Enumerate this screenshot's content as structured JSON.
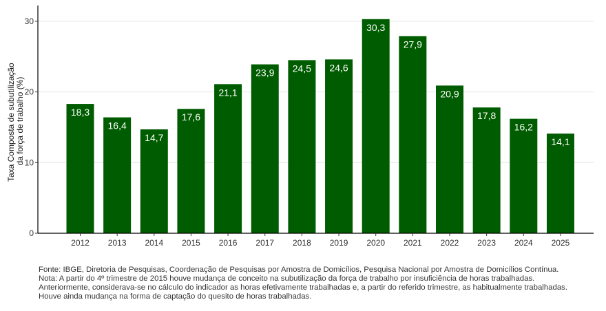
{
  "chart_data": {
    "type": "bar",
    "categories": [
      "2012",
      "2013",
      "2014",
      "2015",
      "2016",
      "2017",
      "2018",
      "2019",
      "2020",
      "2021",
      "2022",
      "2023",
      "2024",
      "2025"
    ],
    "values": [
      18.3,
      16.4,
      14.7,
      17.6,
      21.1,
      23.9,
      24.5,
      24.6,
      30.3,
      27.9,
      20.9,
      17.8,
      16.2,
      14.1
    ],
    "value_labels": [
      "18,3",
      "16,4",
      "14,7",
      "17,6",
      "21,1",
      "23,9",
      "24,5",
      "24,6",
      "30,3",
      "27,9",
      "20,9",
      "17,8",
      "16,2",
      "14,1"
    ],
    "title": "",
    "xlabel": "",
    "ylabel_lines": [
      "Taxa Composta de subutilização",
      "da força de trabalho (%)"
    ],
    "ylim": [
      0,
      32
    ],
    "yticks": [
      0,
      10,
      20,
      30
    ],
    "grid": true,
    "bar_color": "#005c00"
  },
  "notes": [
    "Fonte: IBGE, Diretoria de Pesquisas, Coordenação de Pesquisas por Amostra de Domicílios, Pesquisa Nacional por Amostra de Domicílios Contínua.",
    "Nota: A partir do 4º trimestre de 2015 houve mudança de conceito na subutilização da força de trabalho por insuficiência de horas trabalhadas.",
    "Anteriormente, considerava-se no cálculo do indicador as horas efetivamente trabalhadas e, a partir do referido trimestre, as habitualmente trabalhadas.",
    "Houve ainda mudança na forma de captação do quesito de horas trabalhadas."
  ]
}
